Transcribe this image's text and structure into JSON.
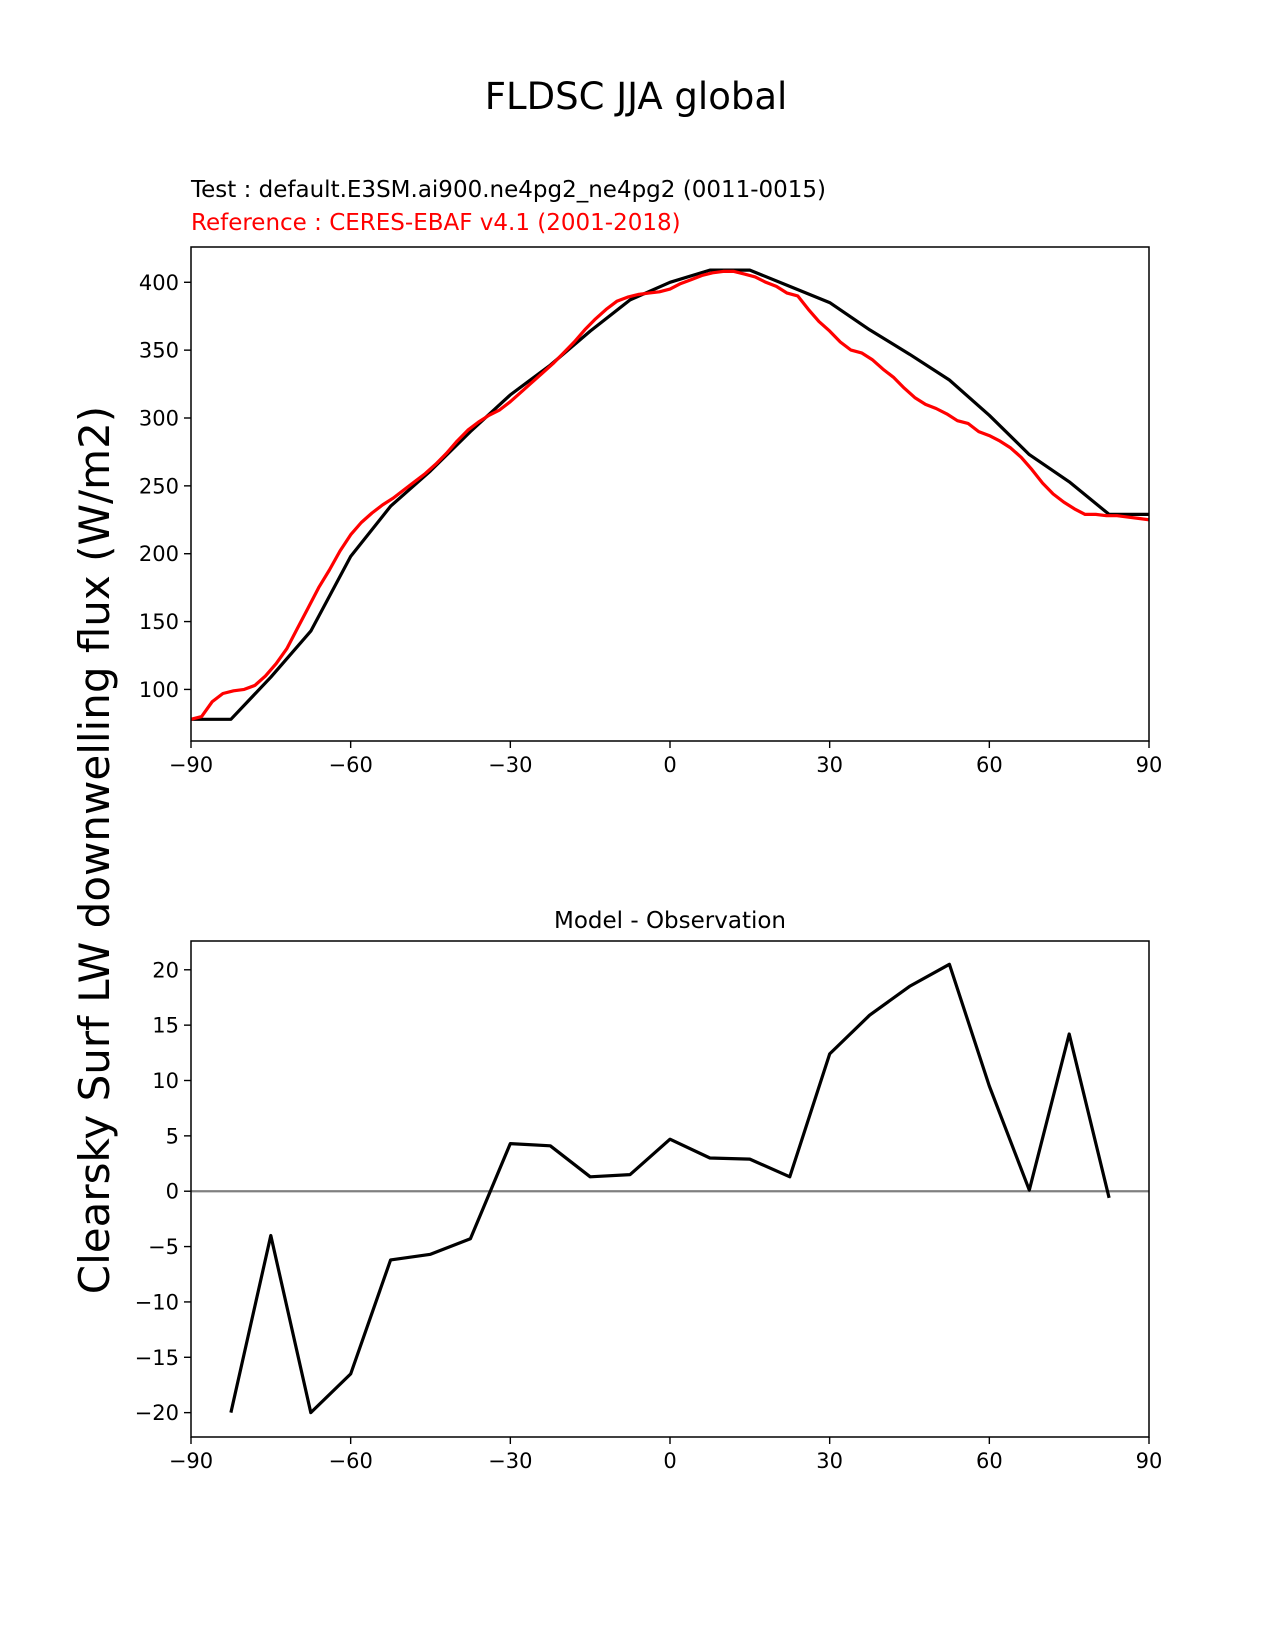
{
  "figure": {
    "suptitle": "FLDSC JJA global"
  },
  "chart_data": [
    {
      "type": "line",
      "test_label": "Test : default.E3SM.ai900.ne4pg2_ne4pg2 (0011-0015)",
      "reference_label": "Reference : CERES-EBAF v4.1 (2001-2018)",
      "ylabel": "Clearsky Surf LW downwelling flux (W/m2)",
      "xlim": [
        -90,
        90
      ],
      "ylim": [
        62,
        426
      ],
      "xticks": [
        -90,
        -60,
        -30,
        0,
        30,
        60,
        90
      ],
      "xtick_labels": [
        "−90",
        "−60",
        "−30",
        "0",
        "30",
        "60",
        "90"
      ],
      "yticks": [
        100,
        150,
        200,
        250,
        300,
        350,
        400
      ],
      "yticks_labels": [
        "100",
        "150",
        "200",
        "250",
        "300",
        "350",
        "400"
      ],
      "grid": false,
      "series": [
        {
          "name": "Test",
          "color": "#000000",
          "x": [
            -90,
            -82.5,
            -75,
            -67.5,
            -60,
            -52.5,
            -45,
            -37.5,
            -30,
            -22.5,
            -15,
            -7.5,
            0,
            7.5,
            15,
            22.5,
            30,
            37.5,
            45,
            52.5,
            60,
            67.5,
            75,
            82.5,
            90
          ],
          "y": [
            78,
            78,
            109,
            143,
            198,
            235,
            261,
            290,
            317,
            339,
            364,
            387,
            400,
            409,
            409,
            397,
            385,
            365,
            347,
            328,
            302,
            273,
            253,
            229,
            229
          ]
        },
        {
          "name": "Reference",
          "color": "#ff0000",
          "x": [
            -90,
            -88,
            -86,
            -84,
            -82,
            -80,
            -78,
            -76,
            -74,
            -72,
            -70,
            -68,
            -66,
            -64,
            -62,
            -60,
            -58,
            -56,
            -54,
            -52,
            -50,
            -48,
            -46,
            -44,
            -42,
            -40,
            -38,
            -36,
            -34,
            -32,
            -30,
            -28,
            -26,
            -24,
            -22,
            -20,
            -18,
            -16,
            -14,
            -12,
            -10,
            -8,
            -6,
            -4,
            -2,
            0,
            2,
            4,
            6,
            8,
            10,
            12,
            14,
            16,
            18,
            20,
            22,
            24,
            26,
            28,
            30,
            32,
            34,
            36,
            38,
            40,
            42,
            44,
            46,
            48,
            50,
            52,
            54,
            56,
            58,
            60,
            62,
            64,
            66,
            68,
            70,
            72,
            74,
            76,
            78,
            80,
            82,
            84,
            86,
            88,
            90
          ],
          "y": [
            78,
            80,
            91,
            97,
            99,
            100,
            103,
            110,
            119,
            130,
            145,
            160,
            175,
            188,
            202,
            214,
            223,
            230,
            236,
            241,
            247,
            253,
            259,
            266,
            274,
            283,
            291,
            297,
            302,
            306,
            312,
            319,
            326,
            333,
            340,
            348,
            356,
            365,
            373,
            380,
            386,
            389,
            391,
            392,
            393,
            395,
            399,
            402,
            405,
            407,
            408,
            408,
            406,
            404,
            400,
            397,
            392,
            390,
            380,
            371,
            364,
            356,
            350,
            348,
            343,
            336,
            330,
            322,
            315,
            310,
            307,
            303,
            298,
            296,
            290,
            287,
            283,
            278,
            271,
            262,
            252,
            244,
            238,
            233,
            229,
            229,
            228,
            228,
            227,
            226,
            225
          ]
        }
      ]
    },
    {
      "type": "line",
      "title": "Model - Observation",
      "xlim": [
        -90,
        90
      ],
      "ylim": [
        -22.2,
        22.6
      ],
      "xticks": [
        -90,
        -60,
        -30,
        0,
        30,
        60,
        90
      ],
      "xtick_labels": [
        "−90",
        "−60",
        "−30",
        "0",
        "30",
        "60",
        "90"
      ],
      "yticks": [
        -20,
        -15,
        -10,
        -5,
        0,
        5,
        10,
        15,
        20
      ],
      "yticks_labels": [
        "−20",
        "−15",
        "−10",
        "−5",
        "0",
        "5",
        "10",
        "15",
        "20"
      ],
      "grid": false,
      "zero_line_color": "#808080",
      "series": [
        {
          "color": "#000000",
          "x": [
            -82.5,
            -75,
            -67.5,
            -60,
            -52.5,
            -45,
            -37.5,
            -30,
            -22.5,
            -15,
            -7.5,
            0,
            7.5,
            15,
            22.5,
            30,
            37.5,
            45,
            52.5,
            60,
            67.5,
            75,
            82.5
          ],
          "y": [
            -20,
            -4,
            -20,
            -16.5,
            -6.2,
            -5.7,
            -4.3,
            4.3,
            4.1,
            1.3,
            1.5,
            4.7,
            3.0,
            2.9,
            1.3,
            12.4,
            15.9,
            18.5,
            20.5,
            9.5,
            0.1,
            14.2,
            -0.6
          ]
        }
      ]
    }
  ]
}
